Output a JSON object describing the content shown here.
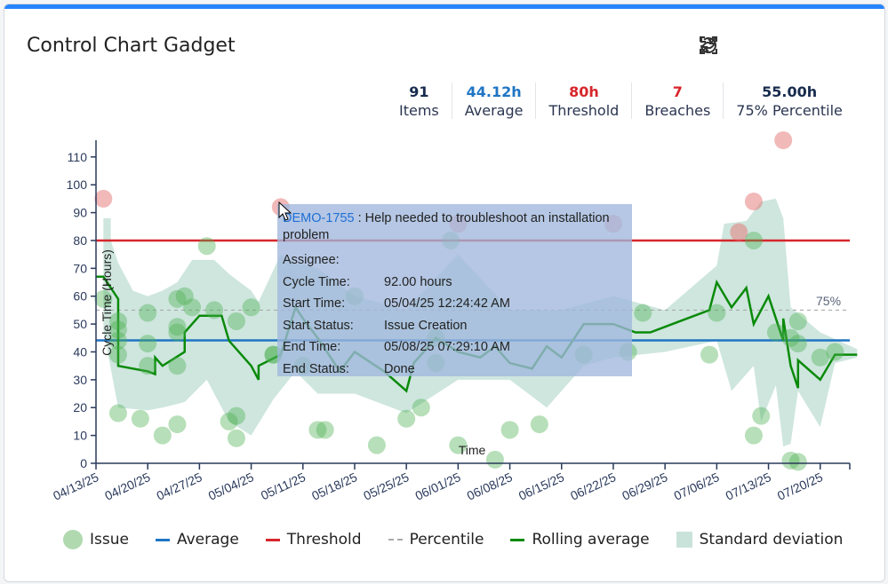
{
  "title": "Control Chart Gadget",
  "toolbar": {
    "icons": [
      "collapse-icon",
      "fullscreen-icon",
      "refresh-icon",
      "link-icon"
    ]
  },
  "stats": [
    {
      "value": "91",
      "label": "Items",
      "color": "#172b4d"
    },
    {
      "value": "44.12h",
      "label": "Average",
      "color": "#1f75c4"
    },
    {
      "value": "80h",
      "label": "Threshold",
      "color": "#d7262c"
    },
    {
      "value": "7",
      "label": "Breaches",
      "color": "#d7262c"
    },
    {
      "value": "55.00h",
      "label": "75% Percentile",
      "color": "#172b4d"
    }
  ],
  "tooltip": {
    "key": "DEMO-1755",
    "summary": " : Help needed to troubleshoot an installation problem",
    "rows": [
      {
        "k": "Assignee:",
        "v": ""
      },
      {
        "k": "Cycle Time:",
        "v": "92.00 hours"
      },
      {
        "k": "Start Time:",
        "v": "05/04/25 12:24:42 AM"
      },
      {
        "k": "Start Status:",
        "v": "Issue Creation"
      },
      {
        "k": "End Time:",
        "v": "05/08/25 07:29:10 AM"
      },
      {
        "k": "End Status:",
        "v": "Done"
      }
    ]
  },
  "legend": [
    "Issue",
    "Average",
    "Threshold",
    "Percentile",
    "Rolling average",
    "Standard deviation"
  ],
  "chart_data": {
    "type": "scatter",
    "xlabel": "Time",
    "ylabel": "Cycle Time (Hours)",
    "xlim": [
      "04/13/25",
      "07/24/25"
    ],
    "ylim": [
      0,
      116
    ],
    "y_ticks": [
      0,
      10,
      20,
      30,
      40,
      50,
      60,
      70,
      80,
      90,
      100,
      110
    ],
    "x_ticks": [
      "04/13/25",
      "04/20/25",
      "04/27/25",
      "05/04/25",
      "05/11/25",
      "05/18/25",
      "05/25/25",
      "06/01/25",
      "06/08/25",
      "06/15/25",
      "06/22/25",
      "06/29/25",
      "07/06/25",
      "07/13/25",
      "07/20/25"
    ],
    "average": 44.12,
    "threshold": 80,
    "percentile": 55,
    "percentile_label": "75%",
    "colors": {
      "issue": "#4caf50",
      "breach": "#e57373",
      "average": "#1f75c4",
      "threshold": "#d7262c",
      "percentile": "#aaaaaa",
      "rolling": "#0a8a0a",
      "std": "#c9e3da"
    },
    "points": [
      [
        "04/14/25",
        95
      ],
      [
        "05/08/25",
        92
      ],
      [
        "06/01/25",
        86
      ],
      [
        "06/22/25",
        86
      ],
      [
        "07/09/25",
        83
      ],
      [
        "07/11/25",
        94
      ],
      [
        "07/15/25",
        116
      ],
      [
        "04/14/25",
        59
      ],
      [
        "04/16/25",
        51
      ],
      [
        "04/16/25",
        48
      ],
      [
        "04/16/25",
        44
      ],
      [
        "04/16/25",
        39
      ],
      [
        "04/16/25",
        18
      ],
      [
        "04/19/25",
        16
      ],
      [
        "04/20/25",
        54
      ],
      [
        "04/20/25",
        43
      ],
      [
        "04/20/25",
        35
      ],
      [
        "04/22/25",
        10
      ],
      [
        "04/24/25",
        59
      ],
      [
        "04/25/25",
        60
      ],
      [
        "04/24/25",
        49
      ],
      [
        "04/24/25",
        47
      ],
      [
        "04/26/25",
        56
      ],
      [
        "04/24/25",
        35
      ],
      [
        "04/24/25",
        14
      ],
      [
        "04/28/25",
        78
      ],
      [
        "04/29/25",
        55
      ],
      [
        "05/02/25",
        51
      ],
      [
        "05/04/25",
        56
      ],
      [
        "05/01/25",
        15
      ],
      [
        "05/02/25",
        17
      ],
      [
        "05/02/25",
        9
      ],
      [
        "05/07/25",
        39
      ],
      [
        "05/07/25",
        39
      ],
      [
        "05/11/25",
        35
      ],
      [
        "05/13/25",
        12
      ],
      [
        "05/14/25",
        12
      ],
      [
        "05/18/25",
        60
      ],
      [
        "05/21/25",
        6.5
      ],
      [
        "05/25/25",
        16
      ],
      [
        "05/27/25",
        20
      ],
      [
        "05/29/25",
        45
      ],
      [
        "05/29/25",
        36
      ],
      [
        "05/31/25",
        80
      ],
      [
        "06/01/25",
        6.5
      ],
      [
        "06/06/25",
        1.3
      ],
      [
        "06/08/25",
        12
      ],
      [
        "06/12/25",
        14
      ],
      [
        "06/18/25",
        39
      ],
      [
        "06/24/25",
        40
      ],
      [
        "06/26/25",
        54
      ],
      [
        "07/05/25",
        39
      ],
      [
        "07/06/25",
        54
      ],
      [
        "07/11/25",
        80
      ],
      [
        "07/11/25",
        10
      ],
      [
        "07/12/25",
        17
      ],
      [
        "07/14/25",
        47
      ],
      [
        "07/16/25",
        45
      ],
      [
        "07/17/25",
        43
      ],
      [
        "07/17/25",
        51
      ],
      [
        "07/16/25",
        1
      ],
      [
        "07/17/25",
        0.5
      ],
      [
        "07/20/25",
        38
      ],
      [
        "07/22/25",
        40
      ]
    ],
    "rolling_average": [
      [
        "04/13/25",
        67
      ],
      [
        "04/14/25",
        67
      ],
      [
        "04/15/25",
        63
      ],
      [
        "04/16/25",
        59
      ],
      [
        "04/16/25",
        35
      ],
      [
        "04/20/25",
        33
      ],
      [
        "04/21/25",
        32
      ],
      [
        "04/21/25",
        38
      ],
      [
        "04/22/25",
        35
      ],
      [
        "04/25/25",
        40
      ],
      [
        "04/25/25",
        47
      ],
      [
        "04/27/25",
        53
      ],
      [
        "04/30/25",
        53
      ],
      [
        "05/01/25",
        44
      ],
      [
        "05/04/25",
        35
      ],
      [
        "05/05/25",
        30
      ],
      [
        "05/05/25",
        35
      ],
      [
        "05/08/25",
        39
      ],
      [
        "05/10/25",
        56
      ],
      [
        "05/11/25",
        52
      ],
      [
        "05/13/25",
        45
      ],
      [
        "05/16/25",
        33
      ],
      [
        "05/18/25",
        40
      ],
      [
        "05/22/25",
        33
      ],
      [
        "05/25/25",
        26
      ],
      [
        "05/26/25",
        36
      ],
      [
        "05/29/25",
        45
      ],
      [
        "06/01/25",
        40
      ],
      [
        "06/04/25",
        38
      ],
      [
        "06/06/25",
        42
      ],
      [
        "06/08/25",
        36
      ],
      [
        "06/11/25",
        34
      ],
      [
        "06/13/25",
        42
      ],
      [
        "06/15/25",
        38
      ],
      [
        "06/18/25",
        50
      ],
      [
        "06/22/25",
        50
      ],
      [
        "06/25/25",
        47
      ],
      [
        "06/27/25",
        47
      ],
      [
        "07/01/25",
        51
      ],
      [
        "07/05/25",
        55
      ],
      [
        "07/06/25",
        65
      ],
      [
        "07/08/25",
        56
      ],
      [
        "07/10/25",
        63
      ],
      [
        "07/11/25",
        50
      ],
      [
        "07/13/25",
        60
      ],
      [
        "07/15/25",
        44
      ],
      [
        "07/15/25",
        52
      ],
      [
        "07/16/25",
        35
      ],
      [
        "07/17/25",
        27
      ],
      [
        "07/17/25",
        37
      ],
      [
        "07/20/25",
        30
      ],
      [
        "07/22/25",
        39
      ],
      [
        "07/25/25",
        39
      ]
    ],
    "std_upper": [
      [
        "04/14/25",
        88
      ],
      [
        "04/15/25",
        88
      ],
      [
        "04/15/25",
        80
      ],
      [
        "04/16/25",
        72
      ],
      [
        "04/18/25",
        62
      ],
      [
        "04/20/25",
        60
      ],
      [
        "04/22/25",
        62
      ],
      [
        "04/24/25",
        65
      ],
      [
        "04/26/25",
        73
      ],
      [
        "04/29/25",
        73
      ],
      [
        "05/01/25",
        68
      ],
      [
        "05/04/25",
        62
      ],
      [
        "05/05/25",
        58
      ],
      [
        "05/08/25",
        75
      ],
      [
        "05/10/25",
        72
      ],
      [
        "05/13/25",
        70
      ],
      [
        "05/18/25",
        60
      ],
      [
        "05/25/25",
        55
      ],
      [
        "06/01/25",
        75
      ],
      [
        "06/08/25",
        55
      ],
      [
        "06/15/25",
        55
      ],
      [
        "06/22/25",
        60
      ],
      [
        "06/29/25",
        55
      ],
      [
        "07/06/25",
        71
      ],
      [
        "07/07/25",
        86
      ],
      [
        "07/10/25",
        87
      ],
      [
        "07/12/25",
        94
      ],
      [
        "07/14/25",
        95
      ],
      [
        "07/15/25",
        88
      ],
      [
        "07/16/25",
        56
      ],
      [
        "07/20/25",
        47
      ],
      [
        "07/25/25",
        41
      ]
    ],
    "std_lower": [
      [
        "04/14/25",
        48
      ],
      [
        "04/16/25",
        20
      ],
      [
        "04/20/25",
        19
      ],
      [
        "04/22/25",
        20
      ],
      [
        "04/25/25",
        22
      ],
      [
        "04/28/25",
        30
      ],
      [
        "05/01/25",
        15
      ],
      [
        "05/04/25",
        10
      ],
      [
        "05/07/25",
        23
      ],
      [
        "05/10/25",
        33
      ],
      [
        "05/13/25",
        25
      ],
      [
        "05/18/25",
        25
      ],
      [
        "05/25/25",
        18
      ],
      [
        "06/01/25",
        30
      ],
      [
        "06/08/25",
        30
      ],
      [
        "06/13/25",
        20
      ],
      [
        "06/18/25",
        35
      ],
      [
        "06/22/25",
        38
      ],
      [
        "06/29/25",
        40
      ],
      [
        "07/06/25",
        44
      ],
      [
        "07/08/25",
        26
      ],
      [
        "07/11/25",
        35
      ],
      [
        "07/12/25",
        15
      ],
      [
        "07/14/25",
        28
      ],
      [
        "07/15/25",
        6
      ],
      [
        "07/16/25",
        7
      ],
      [
        "07/17/25",
        26
      ],
      [
        "07/20/25",
        13
      ],
      [
        "07/22/25",
        36
      ],
      [
        "07/25/25",
        38
      ]
    ]
  }
}
